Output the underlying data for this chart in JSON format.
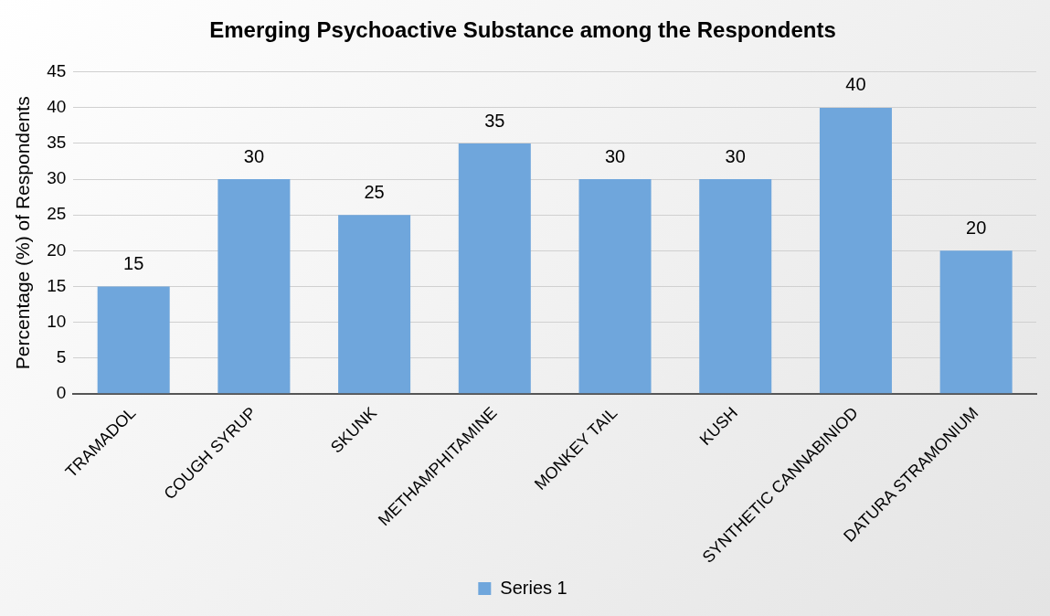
{
  "chart_data": {
    "type": "bar",
    "title": "Emerging Psychoactive Substance among the Respondents",
    "ylabel": "Percentage (%) of Respondents",
    "categories": [
      "TRAMADOL",
      "COUGH SYRUP",
      "SKUNK",
      "METHAMPHITAMINE",
      "MONKEY TAIL",
      "KUSH",
      "SYNTHETIC CANNABINIOD",
      "DATURA STRAMONIUM"
    ],
    "series": [
      {
        "name": "Series 1",
        "color": "#6fa6dc",
        "values": [
          15,
          30,
          25,
          35,
          30,
          30,
          40,
          20
        ]
      }
    ],
    "ylim": [
      0,
      45
    ],
    "yticks": [
      0,
      5,
      10,
      15,
      20,
      25,
      30,
      35,
      40,
      45
    ],
    "grid": "y",
    "legend": "bottom",
    "data_labels": true
  }
}
